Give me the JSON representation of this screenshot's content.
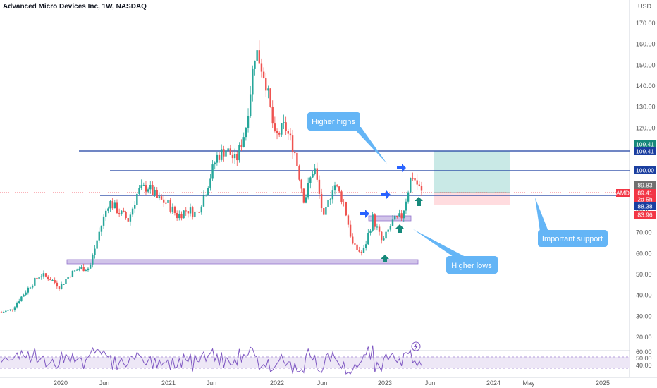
{
  "header": {
    "title": "Advanced Micro Devices Inc, 1W, NASDAQ"
  },
  "price_axis": {
    "currency": "USD",
    "ticks": [
      "170.00",
      "160.00",
      "150.00",
      "140.00",
      "130.00",
      "120.00",
      "110.00",
      "100.00",
      "90.00",
      "80.00",
      "70.00",
      "60.00",
      "50.00",
      "40.00",
      "30.00",
      "20.00"
    ]
  },
  "rsi_axis": {
    "ticks": [
      "60.00",
      "50.00",
      "40.00"
    ]
  },
  "time_axis": {
    "ticks": [
      "2020",
      "Jun",
      "2021",
      "Jun",
      "2022",
      "Jun",
      "2023",
      "Jun",
      "2024",
      "May",
      "2025"
    ]
  },
  "price_tags": [
    {
      "text": "109.41",
      "value": 109.41,
      "color": "#16897b"
    },
    {
      "text": "109.41",
      "value": 109.41,
      "color": "#1b3fa0"
    },
    {
      "text": "100.00",
      "value": 100.0,
      "color": "#1b3fa0"
    },
    {
      "text": "89.83",
      "value": 89.83,
      "color": "#707070"
    },
    {
      "text": "89.41",
      "value": 89.41,
      "color": "#f23645"
    },
    {
      "text": "2d 5h",
      "value": 85.9,
      "color": "#f23645"
    },
    {
      "text": "88.38",
      "value": 88.38,
      "color": "#1b3fa0"
    },
    {
      "text": "83.96",
      "value": 83.96,
      "color": "#f23645"
    }
  ],
  "symbol_tag": {
    "text": "AMD",
    "color": "#f23645"
  },
  "annotations": {
    "higher_highs": "Higher highs",
    "higher_lows": "Higher lows",
    "important_support": "Important support"
  },
  "colors": {
    "up": "#26a69a",
    "down": "#ef5350",
    "line": "#1b3fa0",
    "zone": "#b39ddb",
    "callout": "#64b5f6",
    "arrow_up": "#16897b",
    "arrow_right": "#2962ff",
    "rsi": "#7e57c2"
  },
  "chart_data": {
    "type": "candlestick",
    "title": "Advanced Micro Devices Inc, 1W, NASDAQ",
    "ylim": [
      14,
      176
    ],
    "ylabel": "USD",
    "lines": [
      {
        "value": 109.41,
        "from": "2019-08",
        "to": "2025-02"
      },
      {
        "value": 100.0,
        "from": "2020-01",
        "to": "2025-02"
      },
      {
        "value": 88.38,
        "from": "2019-12",
        "to": "2025-02"
      }
    ],
    "zones": [
      {
        "low": 56.5,
        "high": 58.5,
        "from": "2019-11",
        "to": "2023-06"
      },
      {
        "low": 75.3,
        "high": 77.5,
        "from": "2022-12",
        "to": "2023-04"
      }
    ],
    "position": {
      "entry": 89.83,
      "target": 109.41,
      "stop": 83.96,
      "from": "2023-06",
      "to": "2024-03"
    },
    "closes": [
      {
        "date": "2019-09",
        "close": 32
      },
      {
        "date": "2019-10",
        "close": 33
      },
      {
        "date": "2019-11",
        "close": 39
      },
      {
        "date": "2019-12",
        "close": 45
      },
      {
        "date": "2020-01",
        "close": 50
      },
      {
        "date": "2020-02",
        "close": 48
      },
      {
        "date": "2020-03",
        "close": 44
      },
      {
        "date": "2020-04",
        "close": 50
      },
      {
        "date": "2020-05",
        "close": 53
      },
      {
        "date": "2020-06",
        "close": 53
      },
      {
        "date": "2020-07",
        "close": 70
      },
      {
        "date": "2020-08",
        "close": 85
      },
      {
        "date": "2020-09",
        "close": 80
      },
      {
        "date": "2020-10",
        "close": 76
      },
      {
        "date": "2020-11",
        "close": 90
      },
      {
        "date": "2020-12",
        "close": 92
      },
      {
        "date": "2021-01",
        "close": 86
      },
      {
        "date": "2021-02",
        "close": 84
      },
      {
        "date": "2021-03",
        "close": 78
      },
      {
        "date": "2021-04",
        "close": 81
      },
      {
        "date": "2021-05",
        "close": 79
      },
      {
        "date": "2021-06",
        "close": 91
      },
      {
        "date": "2021-07",
        "close": 106
      },
      {
        "date": "2021-08",
        "close": 110
      },
      {
        "date": "2021-09",
        "close": 104
      },
      {
        "date": "2021-10",
        "close": 120
      },
      {
        "date": "2021-11",
        "close": 158
      },
      {
        "date": "2021-12",
        "close": 144
      },
      {
        "date": "2022-01",
        "close": 115
      },
      {
        "date": "2022-02",
        "close": 121
      },
      {
        "date": "2022-03",
        "close": 109
      },
      {
        "date": "2022-04",
        "close": 85
      },
      {
        "date": "2022-05",
        "close": 102
      },
      {
        "date": "2022-06",
        "close": 76
      },
      {
        "date": "2022-07",
        "close": 94
      },
      {
        "date": "2022-08",
        "close": 85
      },
      {
        "date": "2022-09",
        "close": 63
      },
      {
        "date": "2022-10",
        "close": 60
      },
      {
        "date": "2022-11",
        "close": 77
      },
      {
        "date": "2022-12",
        "close": 65
      },
      {
        "date": "2023-01",
        "close": 75
      },
      {
        "date": "2023-02",
        "close": 78
      },
      {
        "date": "2023-03",
        "close": 98
      },
      {
        "date": "2023-04",
        "close": 89
      }
    ]
  }
}
